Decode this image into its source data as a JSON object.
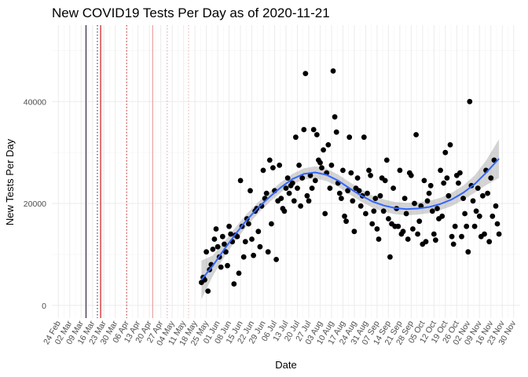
{
  "chart_data": {
    "type": "scatter",
    "title": "New COVID19 Tests Per Day as of 2020-11-21",
    "xlabel": "Date",
    "ylabel": "New Tests Per Day",
    "xlim": [
      "2020-02-24",
      "2020-11-30"
    ],
    "ylim": [
      -2500,
      55000
    ],
    "y_ticks": [
      0,
      20000,
      40000
    ],
    "y_tick_labels": [
      "0",
      "20000",
      "40000"
    ],
    "x_ticks": [
      "2020-02-24",
      "2020-03-02",
      "2020-03-09",
      "2020-03-16",
      "2020-03-23",
      "2020-03-30",
      "2020-04-06",
      "2020-04-13",
      "2020-04-20",
      "2020-04-27",
      "2020-05-04",
      "2020-05-11",
      "2020-05-18",
      "2020-05-25",
      "2020-06-01",
      "2020-06-08",
      "2020-06-15",
      "2020-06-22",
      "2020-06-29",
      "2020-07-06",
      "2020-07-13",
      "2020-07-20",
      "2020-07-27",
      "2020-08-03",
      "2020-08-10",
      "2020-08-17",
      "2020-08-24",
      "2020-08-31",
      "2020-09-07",
      "2020-09-14",
      "2020-09-21",
      "2020-09-28",
      "2020-10-05",
      "2020-10-12",
      "2020-10-19",
      "2020-10-26",
      "2020-11-02",
      "2020-11-09",
      "2020-11-16",
      "2020-11-23",
      "2020-11-30"
    ],
    "x_tick_labels": [
      "24 Feb",
      "02 Mar",
      "09 Mar",
      "16 Mar",
      "23 Mar",
      "30 Mar",
      "06 Apr",
      "13 Apr",
      "20 Apr",
      "27 Apr",
      "04 May",
      "11 May",
      "18 May",
      "25 May",
      "01 Jun",
      "08 Jun",
      "15 Jun",
      "22 Jun",
      "29 Jun",
      "06 Jul",
      "13 Jul",
      "20 Jul",
      "27 Jul",
      "03 Aug",
      "10 Aug",
      "17 Aug",
      "24 Aug",
      "31 Aug",
      "07 Sep",
      "14 Sep",
      "21 Sep",
      "28 Sep",
      "05 Oct",
      "12 Oct",
      "19 Oct",
      "26 Oct",
      "02 Nov",
      "09 Nov",
      "16 Nov",
      "23 Nov",
      "30 Nov"
    ],
    "grid": true,
    "legend": "none",
    "vlines": [
      {
        "x": "2020-03-12",
        "color": "#2b1a3d",
        "style": "solid"
      },
      {
        "x": "2020-03-19",
        "color": "#33337a",
        "style": "dotted"
      },
      {
        "x": "2020-03-21",
        "color": "#cc0000",
        "style": "solid"
      },
      {
        "x": "2020-04-06",
        "color": "#cc3333",
        "style": "dotted"
      },
      {
        "x": "2020-04-22",
        "color": "#e89999",
        "style": "solid"
      },
      {
        "x": "2020-05-01",
        "color": "#eeaaaa",
        "style": "dotted"
      },
      {
        "x": "2020-05-14",
        "color": "#f2bbbb",
        "style": "dotted"
      }
    ],
    "series": [
      {
        "type": "scatter",
        "color": "#000000",
        "points": [
          [
            "2020-05-22",
            4500
          ],
          [
            "2020-05-23",
            5500
          ],
          [
            "2020-05-24",
            5000
          ],
          [
            "2020-05-25",
            10500
          ],
          [
            "2020-05-26",
            2800
          ],
          [
            "2020-05-27",
            7000
          ],
          [
            "2020-05-28",
            8000
          ],
          [
            "2020-05-29",
            11000
          ],
          [
            "2020-05-30",
            13000
          ],
          [
            "2020-05-31",
            15000
          ],
          [
            "2020-06-01",
            11500
          ],
          [
            "2020-06-02",
            9500
          ],
          [
            "2020-06-03",
            7500
          ],
          [
            "2020-06-04",
            13500
          ],
          [
            "2020-06-05",
            12000
          ],
          [
            "2020-06-06",
            10500
          ],
          [
            "2020-06-07",
            7800
          ],
          [
            "2020-06-08",
            15500
          ],
          [
            "2020-06-09",
            14000
          ],
          [
            "2020-06-10",
            12500
          ],
          [
            "2020-06-11",
            4200
          ],
          [
            "2020-06-12",
            13800
          ],
          [
            "2020-06-13",
            13500
          ],
          [
            "2020-06-14",
            6300
          ],
          [
            "2020-06-15",
            24500
          ],
          [
            "2020-06-16",
            15500
          ],
          [
            "2020-06-17",
            9500
          ],
          [
            "2020-06-18",
            12500
          ],
          [
            "2020-06-19",
            17000
          ],
          [
            "2020-06-20",
            16000
          ],
          [
            "2020-06-21",
            22500
          ],
          [
            "2020-06-22",
            13000
          ],
          [
            "2020-06-23",
            9800
          ],
          [
            "2020-06-24",
            18500
          ],
          [
            "2020-06-25",
            19000
          ],
          [
            "2020-06-26",
            14500
          ],
          [
            "2020-06-27",
            11500
          ],
          [
            "2020-06-28",
            19500
          ],
          [
            "2020-06-29",
            26500
          ],
          [
            "2020-06-30",
            21000
          ],
          [
            "2020-07-01",
            22000
          ],
          [
            "2020-07-02",
            10500
          ],
          [
            "2020-07-03",
            28500
          ],
          [
            "2020-07-04",
            16000
          ],
          [
            "2020-07-05",
            27000
          ],
          [
            "2020-07-06",
            22500
          ],
          [
            "2020-07-07",
            9000
          ],
          [
            "2020-07-08",
            20500
          ],
          [
            "2020-07-09",
            27500
          ],
          [
            "2020-07-10",
            21000
          ],
          [
            "2020-07-11",
            19000
          ],
          [
            "2020-07-12",
            18500
          ],
          [
            "2020-07-13",
            23000
          ],
          [
            "2020-07-14",
            25000
          ],
          [
            "2020-07-15",
            22000
          ],
          [
            "2020-07-16",
            23500
          ],
          [
            "2020-07-17",
            24000
          ],
          [
            "2020-07-18",
            20500
          ],
          [
            "2020-07-19",
            33000
          ],
          [
            "2020-07-20",
            23000
          ],
          [
            "2020-07-21",
            27500
          ],
          [
            "2020-07-22",
            19500
          ],
          [
            "2020-07-23",
            25000
          ],
          [
            "2020-07-24",
            34500
          ],
          [
            "2020-07-25",
            45500
          ],
          [
            "2020-07-26",
            21500
          ],
          [
            "2020-07-27",
            20500
          ],
          [
            "2020-07-28",
            25500
          ],
          [
            "2020-07-29",
            23000
          ],
          [
            "2020-07-30",
            34500
          ],
          [
            "2020-07-31",
            24500
          ],
          [
            "2020-08-01",
            33500
          ],
          [
            "2020-08-02",
            28500
          ],
          [
            "2020-08-03",
            28000
          ],
          [
            "2020-08-04",
            27000
          ],
          [
            "2020-08-05",
            30500
          ],
          [
            "2020-08-06",
            18000
          ],
          [
            "2020-08-07",
            26000
          ],
          [
            "2020-08-08",
            31500
          ],
          [
            "2020-08-09",
            23000
          ],
          [
            "2020-08-10",
            27500
          ],
          [
            "2020-08-11",
            46000
          ],
          [
            "2020-08-12",
            37000
          ],
          [
            "2020-08-13",
            34000
          ],
          [
            "2020-08-14",
            24000
          ],
          [
            "2020-08-15",
            22000
          ],
          [
            "2020-08-16",
            21000
          ],
          [
            "2020-08-17",
            26500
          ],
          [
            "2020-08-18",
            17500
          ],
          [
            "2020-08-19",
            16500
          ],
          [
            "2020-08-20",
            22500
          ],
          [
            "2020-08-21",
            33000
          ],
          [
            "2020-08-22",
            26000
          ],
          [
            "2020-08-23",
            20500
          ],
          [
            "2020-08-24",
            14500
          ],
          [
            "2020-08-25",
            23000
          ],
          [
            "2020-08-26",
            25000
          ],
          [
            "2020-08-27",
            22500
          ],
          [
            "2020-08-28",
            19500
          ],
          [
            "2020-08-29",
            21500
          ],
          [
            "2020-08-30",
            33000
          ],
          [
            "2020-08-31",
            18000
          ],
          [
            "2020-09-01",
            22000
          ],
          [
            "2020-09-02",
            26500
          ],
          [
            "2020-09-03",
            25500
          ],
          [
            "2020-09-04",
            16000
          ],
          [
            "2020-09-05",
            18500
          ],
          [
            "2020-09-06",
            21000
          ],
          [
            "2020-09-07",
            15000
          ],
          [
            "2020-09-08",
            13000
          ],
          [
            "2020-09-09",
            21500
          ],
          [
            "2020-09-10",
            25000
          ],
          [
            "2020-09-11",
            18500
          ],
          [
            "2020-09-12",
            24500
          ],
          [
            "2020-09-13",
            28500
          ],
          [
            "2020-09-14",
            17000
          ],
          [
            "2020-09-15",
            9500
          ],
          [
            "2020-09-16",
            16000
          ],
          [
            "2020-09-17",
            23000
          ],
          [
            "2020-09-18",
            15500
          ],
          [
            "2020-09-19",
            19000
          ],
          [
            "2020-09-20",
            15500
          ],
          [
            "2020-09-21",
            26500
          ],
          [
            "2020-09-22",
            14000
          ],
          [
            "2020-09-23",
            14500
          ],
          [
            "2020-09-24",
            21000
          ],
          [
            "2020-09-25",
            18000
          ],
          [
            "2020-09-26",
            13000
          ],
          [
            "2020-09-27",
            26000
          ],
          [
            "2020-09-28",
            25500
          ],
          [
            "2020-09-29",
            15000
          ],
          [
            "2020-09-30",
            20000
          ],
          [
            "2020-10-01",
            33500
          ],
          [
            "2020-10-02",
            14000
          ],
          [
            "2020-10-03",
            16500
          ],
          [
            "2020-10-04",
            19500
          ],
          [
            "2020-10-05",
            12000
          ],
          [
            "2020-10-06",
            24500
          ],
          [
            "2020-10-07",
            12500
          ],
          [
            "2020-10-08",
            20500
          ],
          [
            "2020-10-09",
            22000
          ],
          [
            "2020-10-10",
            23500
          ],
          [
            "2020-10-11",
            18500
          ],
          [
            "2020-10-12",
            14000
          ],
          [
            "2020-10-13",
            12800
          ],
          [
            "2020-10-14",
            19000
          ],
          [
            "2020-10-15",
            17000
          ],
          [
            "2020-10-16",
            26500
          ],
          [
            "2020-10-17",
            17500
          ],
          [
            "2020-10-18",
            24000
          ],
          [
            "2020-10-19",
            30000
          ],
          [
            "2020-10-20",
            25000
          ],
          [
            "2020-10-21",
            21500
          ],
          [
            "2020-10-22",
            31500
          ],
          [
            "2020-10-23",
            13500
          ],
          [
            "2020-10-24",
            12000
          ],
          [
            "2020-10-25",
            15500
          ],
          [
            "2020-10-26",
            25500
          ],
          [
            "2020-10-27",
            24000
          ],
          [
            "2020-10-28",
            26000
          ],
          [
            "2020-10-29",
            13500
          ],
          [
            "2020-10-30",
            21000
          ],
          [
            "2020-10-31",
            18000
          ],
          [
            "2020-11-01",
            15500
          ],
          [
            "2020-11-02",
            10500
          ],
          [
            "2020-11-03",
            40000
          ],
          [
            "2020-11-04",
            23500
          ],
          [
            "2020-11-05",
            20500
          ],
          [
            "2020-11-06",
            15500
          ],
          [
            "2020-11-07",
            18500
          ],
          [
            "2020-11-08",
            23000
          ],
          [
            "2020-11-09",
            17500
          ],
          [
            "2020-11-10",
            13500
          ],
          [
            "2020-11-11",
            21500
          ],
          [
            "2020-11-12",
            14000
          ],
          [
            "2020-11-13",
            26500
          ],
          [
            "2020-11-14",
            22000
          ],
          [
            "2020-11-15",
            12500
          ],
          [
            "2020-11-16",
            25000
          ],
          [
            "2020-11-17",
            17500
          ],
          [
            "2020-11-18",
            28500
          ],
          [
            "2020-11-19",
            19500
          ],
          [
            "2020-11-20",
            16000
          ],
          [
            "2020-11-21",
            14000
          ]
        ]
      },
      {
        "type": "smooth",
        "color": "#3366ff",
        "band_color": "#999999",
        "points": [
          [
            "2020-05-22",
            5000,
            1200,
            8800
          ],
          [
            "2020-05-29",
            7800,
            5800,
            9800
          ],
          [
            "2020-06-05",
            11000,
            9500,
            12500
          ],
          [
            "2020-06-12",
            14000,
            12700,
            15300
          ],
          [
            "2020-06-19",
            16800,
            15600,
            18000
          ],
          [
            "2020-06-26",
            19200,
            18100,
            20300
          ],
          [
            "2020-07-03",
            21300,
            20300,
            22300
          ],
          [
            "2020-07-10",
            23200,
            22200,
            24200
          ],
          [
            "2020-07-17",
            24800,
            23800,
            25800
          ],
          [
            "2020-07-24",
            25800,
            24700,
            26900
          ],
          [
            "2020-07-31",
            26100,
            24900,
            27300
          ],
          [
            "2020-08-07",
            25600,
            24400,
            26800
          ],
          [
            "2020-08-14",
            24500,
            23300,
            25700
          ],
          [
            "2020-08-21",
            23000,
            21800,
            24200
          ],
          [
            "2020-08-28",
            21600,
            20400,
            22800
          ],
          [
            "2020-09-04",
            20400,
            19200,
            21600
          ],
          [
            "2020-09-11",
            19600,
            18400,
            20800
          ],
          [
            "2020-09-18",
            19100,
            17900,
            20300
          ],
          [
            "2020-09-25",
            18900,
            17700,
            20100
          ],
          [
            "2020-10-02",
            19000,
            17800,
            20200
          ],
          [
            "2020-10-09",
            19300,
            18100,
            20500
          ],
          [
            "2020-10-16",
            19900,
            18700,
            21100
          ],
          [
            "2020-10-23",
            20800,
            19500,
            22100
          ],
          [
            "2020-10-30",
            22100,
            20700,
            23500
          ],
          [
            "2020-11-06",
            23800,
            22100,
            25500
          ],
          [
            "2020-11-13",
            26000,
            23600,
            28400
          ],
          [
            "2020-11-21",
            28800,
            25000,
            32600
          ]
        ]
      }
    ]
  }
}
